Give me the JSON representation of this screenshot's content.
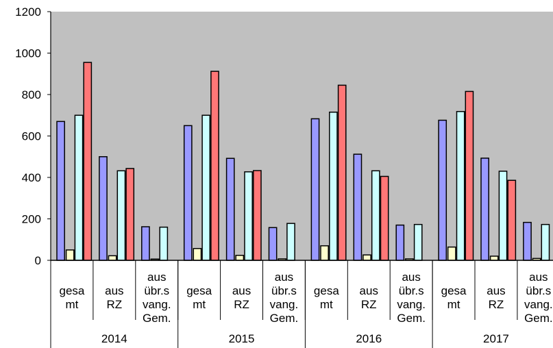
{
  "chart_data": {
    "type": "bar",
    "ylim": [
      0,
      1200
    ],
    "y_ticks": [
      "0",
      "200",
      "400",
      "600",
      "800",
      "1000",
      "1200"
    ],
    "grid": false,
    "plot_background": "#c0c0c0",
    "groups": [
      {
        "year": "2014",
        "categories": [
          {
            "label_lines": [
              "gesa",
              "mt"
            ],
            "values": [
              670,
              50,
              700,
              955
            ]
          },
          {
            "label_lines": [
              "aus",
              "RZ"
            ],
            "values": [
              500,
              22,
              432,
              443
            ]
          },
          {
            "label_lines": [
              "aus",
              "übr.s",
              "vang.",
              "Gem."
            ],
            "values": [
              162,
              6,
              160,
              null
            ]
          }
        ]
      },
      {
        "year": "2015",
        "categories": [
          {
            "label_lines": [
              "gesa",
              "mt"
            ],
            "values": [
              650,
              57,
              700,
              912
            ]
          },
          {
            "label_lines": [
              "aus",
              "RZ"
            ],
            "values": [
              492,
              24,
              427,
              433
            ]
          },
          {
            "label_lines": [
              "aus",
              "übr.s",
              "vang.",
              "Gem."
            ],
            "values": [
              158,
              7,
              178,
              null
            ]
          }
        ]
      },
      {
        "year": "2016",
        "categories": [
          {
            "label_lines": [
              "gesa",
              "mt"
            ],
            "values": [
              683,
              70,
              715,
              845
            ]
          },
          {
            "label_lines": [
              "aus",
              "RZ"
            ],
            "values": [
              512,
              26,
              432,
              405
            ]
          },
          {
            "label_lines": [
              "aus",
              "übr.s",
              "vang.",
              "Gem."
            ],
            "values": [
              170,
              7,
              173,
              null
            ]
          }
        ]
      },
      {
        "year": "2017",
        "categories": [
          {
            "label_lines": [
              "gesa",
              "mt"
            ],
            "values": [
              676,
              64,
              718,
              815
            ]
          },
          {
            "label_lines": [
              "aus",
              "RZ"
            ],
            "values": [
              493,
              20,
              430,
              386
            ]
          },
          {
            "label_lines": [
              "aus",
              "übr.s",
              "vang.",
              "Gem."
            ],
            "values": [
              183,
              9,
              173,
              null
            ]
          }
        ]
      }
    ],
    "series_colors": [
      "#9999ff",
      "#ffffcc",
      "#ccffff",
      "#ff7777"
    ]
  }
}
